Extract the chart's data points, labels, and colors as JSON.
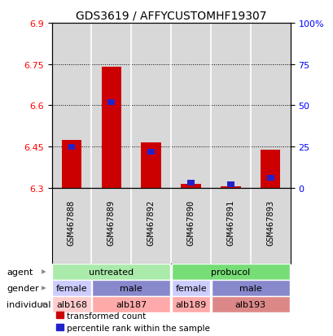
{
  "title": "GDS3619 / AFFYCUSTOMHF19307",
  "samples": [
    "GSM467888",
    "GSM467889",
    "GSM467892",
    "GSM467890",
    "GSM467891",
    "GSM467893"
  ],
  "red_values": [
    6.475,
    6.74,
    6.465,
    6.315,
    6.305,
    6.44
  ],
  "blue_values_pct": [
    25,
    52,
    22,
    3,
    2,
    6
  ],
  "ylim_left": [
    6.3,
    6.9
  ],
  "ylim_right": [
    0,
    100
  ],
  "yticks_left": [
    6.3,
    6.45,
    6.6,
    6.75,
    6.9
  ],
  "yticks_right": [
    0,
    25,
    50,
    75,
    100
  ],
  "ytick_labels_left": [
    "6.3",
    "6.45",
    "6.6",
    "6.75",
    "6.9"
  ],
  "ytick_labels_right": [
    "0",
    "25",
    "50",
    "75",
    "100%"
  ],
  "grid_yticks": [
    6.45,
    6.6,
    6.75
  ],
  "bar_bottom": 6.3,
  "agent_row": {
    "label": "agent",
    "groups": [
      {
        "text": "untreated",
        "cols": [
          0,
          1,
          2
        ],
        "color": "#AAEAAA"
      },
      {
        "text": "probucol",
        "cols": [
          3,
          4,
          5
        ],
        "color": "#77DD77"
      }
    ]
  },
  "gender_row": {
    "label": "gender",
    "groups": [
      {
        "text": "female",
        "cols": [
          0
        ],
        "color": "#CCCCFF"
      },
      {
        "text": "male",
        "cols": [
          1,
          2
        ],
        "color": "#8888CC"
      },
      {
        "text": "female",
        "cols": [
          3
        ],
        "color": "#CCCCFF"
      },
      {
        "text": "male",
        "cols": [
          4,
          5
        ],
        "color": "#8888CC"
      }
    ]
  },
  "individual_row": {
    "label": "individual",
    "groups": [
      {
        "text": "alb168",
        "cols": [
          0
        ],
        "color": "#FFCCCC"
      },
      {
        "text": "alb187",
        "cols": [
          1,
          2
        ],
        "color": "#FFAAAA"
      },
      {
        "text": "alb189",
        "cols": [
          3
        ],
        "color": "#FFAAAA"
      },
      {
        "text": "alb193",
        "cols": [
          4,
          5
        ],
        "color": "#DD8888"
      }
    ]
  },
  "legend_red": "transformed count",
  "legend_blue": "percentile rank within the sample",
  "red_color": "#CC0000",
  "blue_color": "#2222CC",
  "bar_width": 0.5,
  "blue_bar_width": 0.18,
  "sample_label_fontsize": 7.5,
  "axis_label_fontsize": 8,
  "title_fontsize": 10,
  "table_fontsize": 8,
  "legend_fontsize": 7.5,
  "bg_color": "#D8D8D8",
  "sample_col_edge": "#AAAAAA"
}
